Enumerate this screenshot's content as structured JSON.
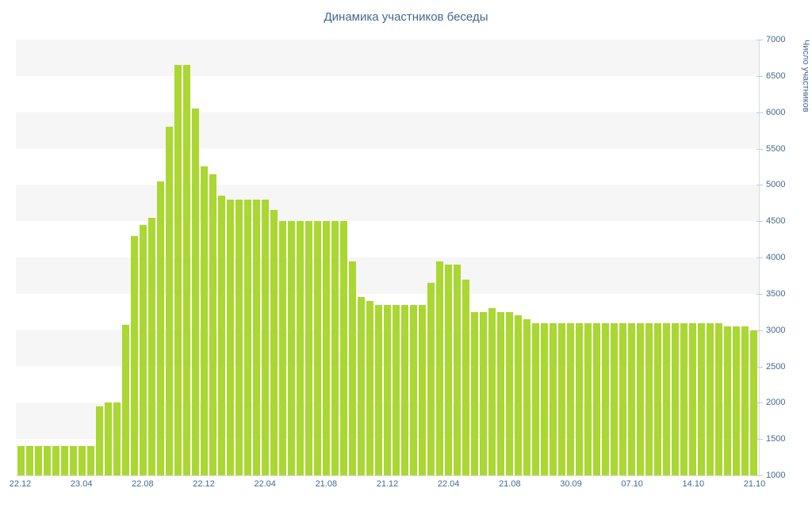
{
  "chart_data": {
    "type": "bar",
    "title": "Динамика участников беседы",
    "ylabel": "Число участников",
    "xlabel": "",
    "ylim": [
      1000,
      7000
    ],
    "ytick_step": 500,
    "yticks": [
      "1000",
      "1500",
      "2000",
      "2500",
      "3000",
      "3500",
      "4000",
      "4500",
      "5000",
      "5500",
      "6000",
      "6500",
      "7000"
    ],
    "x_labels": [
      "22.12",
      "23.04",
      "22.08",
      "22.12",
      "22.04",
      "21.08",
      "21.12",
      "22.04",
      "21.08",
      "30.09",
      "07.10",
      "14.10",
      "21.10"
    ],
    "x_label_every_n_bars": 7,
    "grid": "alternating horizontal bands",
    "legend": "none",
    "values": [
      1400,
      1400,
      1400,
      1400,
      1400,
      1400,
      1400,
      1400,
      1400,
      1950,
      2000,
      2000,
      3070,
      4300,
      4450,
      4550,
      5050,
      5800,
      6650,
      6650,
      6050,
      5250,
      5150,
      4850,
      4800,
      4800,
      4800,
      4800,
      4800,
      4650,
      4500,
      4500,
      4500,
      4500,
      4500,
      4500,
      4500,
      4500,
      3950,
      3450,
      3400,
      3350,
      3350,
      3350,
      3350,
      3350,
      3350,
      3650,
      3950,
      3900,
      3900,
      3700,
      3250,
      3250,
      3300,
      3250,
      3250,
      3200,
      3150,
      3100,
      3100,
      3100,
      3100,
      3100,
      3100,
      3100,
      3100,
      3100,
      3100,
      3100,
      3100,
      3100,
      3100,
      3100,
      3100,
      3100,
      3100,
      3100,
      3100,
      3100,
      3100,
      3050,
      3050,
      3050,
      3000
    ],
    "colors": {
      "bar": "#aad732",
      "title_text": "#45688e",
      "axis_line": "#d6dde3",
      "tick_mark": "#c3ccd4",
      "tick_text": "#45688e",
      "stripe": "#f6f6f6",
      "background": "#ffffff"
    }
  }
}
